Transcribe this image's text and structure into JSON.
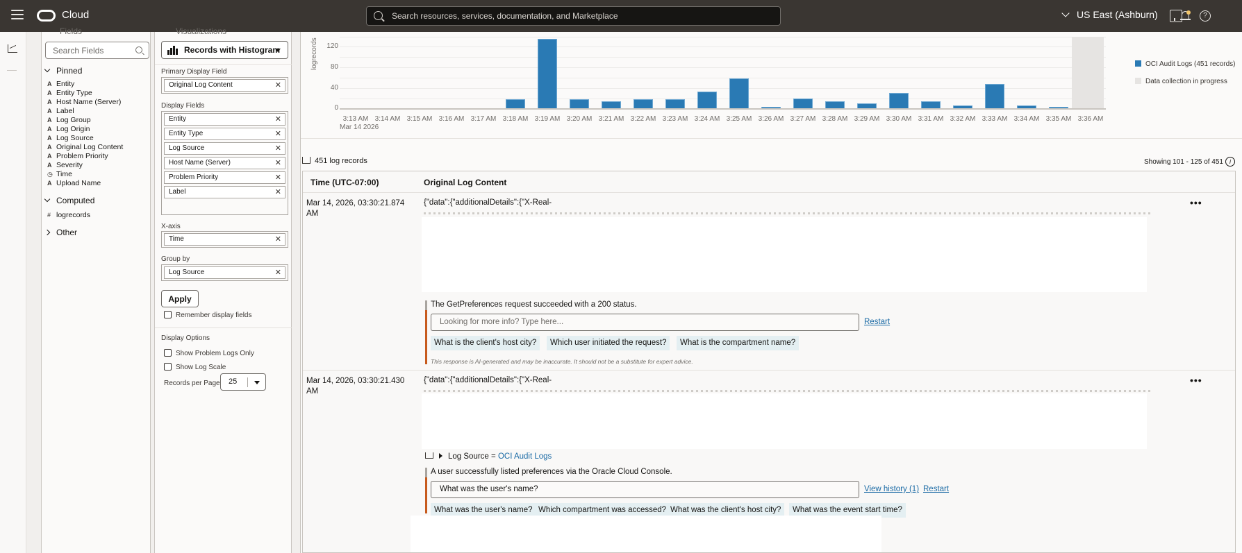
{
  "topbar": {
    "brand": "Cloud",
    "search_placeholder": "Search resources, services, documentation, and Marketplace",
    "region": "US East (Ashburn)",
    "help_glyph": "?"
  },
  "fields_panel": {
    "title": "Fields",
    "search_placeholder": "Search Fields",
    "groups": {
      "pinned": {
        "label": "Pinned",
        "items": [
          {
            "type": "A",
            "label": "Entity"
          },
          {
            "type": "A",
            "label": "Entity Type"
          },
          {
            "type": "A",
            "label": "Host Name (Server)"
          },
          {
            "type": "A",
            "label": "Label"
          },
          {
            "type": "A",
            "label": "Log Group"
          },
          {
            "type": "A",
            "label": "Log Origin"
          },
          {
            "type": "A",
            "label": "Log Source"
          },
          {
            "type": "A",
            "label": "Original Log Content"
          },
          {
            "type": "A",
            "label": "Problem Priority"
          },
          {
            "type": "A",
            "label": "Severity"
          },
          {
            "type": "◷",
            "label": "Time"
          },
          {
            "type": "A",
            "label": "Upload Name"
          }
        ]
      },
      "computed": {
        "label": "Computed",
        "items": [
          {
            "type": "#",
            "label": "logrecords"
          }
        ]
      },
      "other": {
        "label": "Other"
      }
    }
  },
  "viz_panel": {
    "title": "Visualizations",
    "selected_viz": "Records with Histogram",
    "primary_display_label": "Primary Display Field",
    "primary_display": [
      "Original Log Content"
    ],
    "display_fields_label": "Display Fields",
    "display_fields": [
      "Entity",
      "Entity Type",
      "Log Source",
      "Host Name (Server)",
      "Problem Priority",
      "Label"
    ],
    "xaxis_label": "X-axis",
    "xaxis": [
      "Time"
    ],
    "groupby_label": "Group by",
    "groupby": [
      "Log Source"
    ],
    "apply_label": "Apply",
    "remember_label": "Remember display fields",
    "display_options_label": "Display Options",
    "show_problem_label": "Show Problem Logs Only",
    "show_log_scale_label": "Show Log Scale",
    "records_per_page_label": "Records per Page",
    "records_per_page": "25",
    "remove_glyph": "✕"
  },
  "chart_data": {
    "type": "bar",
    "title": "",
    "xlabel": "",
    "ylabel": "logrecords",
    "ylim": [
      0,
      140
    ],
    "yticks": [
      "120",
      "80",
      "40",
      "0"
    ],
    "date_label": "Mar 14 2026",
    "categories": [
      "3:13 AM",
      "3:14 AM",
      "3:15 AM",
      "3:16 AM",
      "3:17 AM",
      "3:18 AM",
      "3:19 AM",
      "3:20 AM",
      "3:21 AM",
      "3:22 AM",
      "3:23 AM",
      "3:24 AM",
      "3:25 AM",
      "3:26 AM",
      "3:27 AM",
      "3:28 AM",
      "3:29 AM",
      "3:30 AM",
      "3:31 AM",
      "3:32 AM",
      "3:33 AM",
      "3:34 AM",
      "3:35 AM",
      "3:36 AM"
    ],
    "series": [
      {
        "name": "OCI Audit Logs (451 records)",
        "color": "#2a7ab4",
        "values": [
          0,
          0,
          0,
          0,
          0,
          17,
          134,
          17,
          13,
          17,
          17,
          32,
          57,
          2,
          19,
          13,
          10,
          30,
          13,
          6,
          47,
          5,
          2,
          0
        ]
      }
    ],
    "legend": [
      {
        "label": "OCI Audit Logs (451 records)",
        "color": "#2a7ab4"
      },
      {
        "label": "Data collection in progress",
        "color": "#e6e4e2"
      }
    ],
    "in_progress_category": "3:36 AM",
    "grid": true,
    "legend_position": "right"
  },
  "records": {
    "count_label": "451 log records",
    "showing": "Showing 101 - 125 of 451",
    "columns": [
      "Time (UTC-07:00)",
      "Original Log Content"
    ],
    "rows": [
      {
        "time": "Mar 14, 2026, 03:30:21.874 AM",
        "content": "{\"data\":{\"additionalDetails\":{\"X-Real-",
        "ai_summary": "The GetPreferences request succeeded with a 200 status.",
        "ask_placeholder": "Looking for more info? Type here...",
        "ask_value": "",
        "restart_label": "Restart",
        "suggestions": [
          "What is the client's host city?",
          "Which user initiated the request?",
          "What is the compartment name?"
        ],
        "disclaimer": "This response is AI-generated and may be inaccurate. It should not be a substitute for expert advice."
      },
      {
        "time": "Mar 14, 2026, 03:30:21.430 AM",
        "content": "{\"data\":{\"additionalDetails\":{\"X-Real-",
        "log_source_label": "Log Source = ",
        "log_source_value": "OCI Audit Logs",
        "ai_summary": "A user successfully listed preferences via the Oracle Cloud Console.",
        "ask_value": "What was the user's name?",
        "view_history_label": "View history (1)",
        "restart_label": "Restart",
        "suggestions": [
          "What was the user's name?",
          "Which compartment was accessed?",
          "What was the client's host city?",
          "What was the event start time?"
        ]
      }
    ],
    "more_glyph": "•••"
  }
}
